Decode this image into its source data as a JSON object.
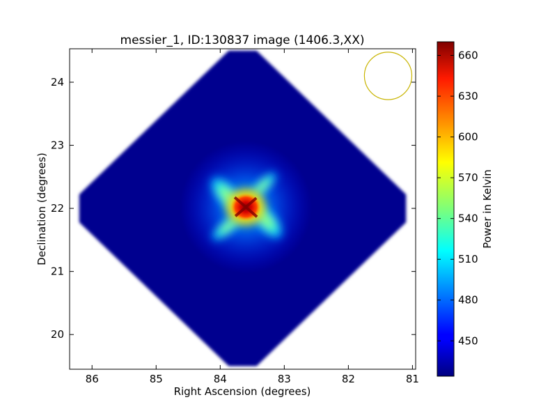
{
  "chart_data": {
    "type": "heatmap",
    "title": "messier_1, ID:130837 image (1406.3,XX)",
    "xlabel": "Right Ascension (degrees)",
    "ylabel": "Declination (degrees)",
    "colorbar_label": "Power in Kelvin",
    "xlim": [
      86.35,
      80.95
    ],
    "ylim": [
      19.45,
      24.53
    ],
    "x_ticks": [
      86,
      85,
      84,
      83,
      82,
      81
    ],
    "y_ticks": [
      20,
      21,
      22,
      23,
      24
    ],
    "colorbar_range": [
      424,
      670
    ],
    "colorbar_ticks": [
      450,
      480,
      510,
      540,
      570,
      600,
      630,
      660
    ],
    "colormap": "jet",
    "map_footprint": {
      "center": [
        83.65,
        22.0
      ],
      "half_width_ra": 2.55,
      "half_width_dec": 2.5,
      "baseline_value": 425
    },
    "peak": {
      "ra": 83.6,
      "dec": 22.02,
      "value": 665
    },
    "beam_circle": {
      "ra": 81.38,
      "dec": 24.1,
      "radius_deg": 0.37,
      "color": "#c8b400"
    },
    "grid": false
  }
}
